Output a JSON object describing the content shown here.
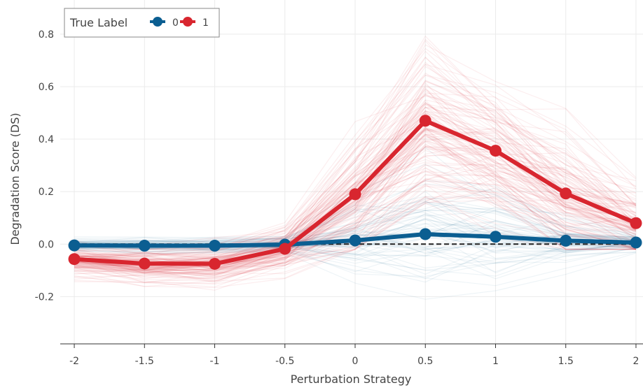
{
  "chart_data": {
    "type": "line",
    "xlabel": "Perturbation Strategy",
    "ylabel": "Degradation Score (DS)",
    "x": [
      -2,
      -1.5,
      -1,
      -0.5,
      0,
      0.5,
      1,
      1.5,
      2
    ],
    "x_tick_labels": [
      "-2",
      "-1.5",
      "-1",
      "-0.5",
      "0",
      "0.5",
      "1",
      "1.5",
      "2"
    ],
    "y_ticks": [
      -0.2,
      0.0,
      0.2,
      0.4,
      0.6,
      0.8
    ],
    "y_tick_labels": [
      "-0.2",
      "0.0",
      "0.2",
      "0.4",
      "0.6",
      "0.8"
    ],
    "xlim": [
      -2.1,
      2.05
    ],
    "ylim": [
      -0.38,
      0.93
    ],
    "grid": true,
    "reference_line": 0,
    "legend": {
      "title": "True Label",
      "placement": "top-left",
      "entries": [
        "0",
        "1"
      ]
    },
    "series": [
      {
        "name": "0",
        "color": "#0b5e91",
        "values": [
          -0.005,
          -0.006,
          -0.006,
          -0.002,
          0.014,
          0.038,
          0.028,
          0.013,
          0.006
        ]
      },
      {
        "name": "1",
        "color": "#d8262f",
        "values": [
          -0.057,
          -0.074,
          -0.075,
          -0.018,
          0.19,
          0.47,
          0.356,
          0.193,
          0.08
        ]
      }
    ]
  }
}
